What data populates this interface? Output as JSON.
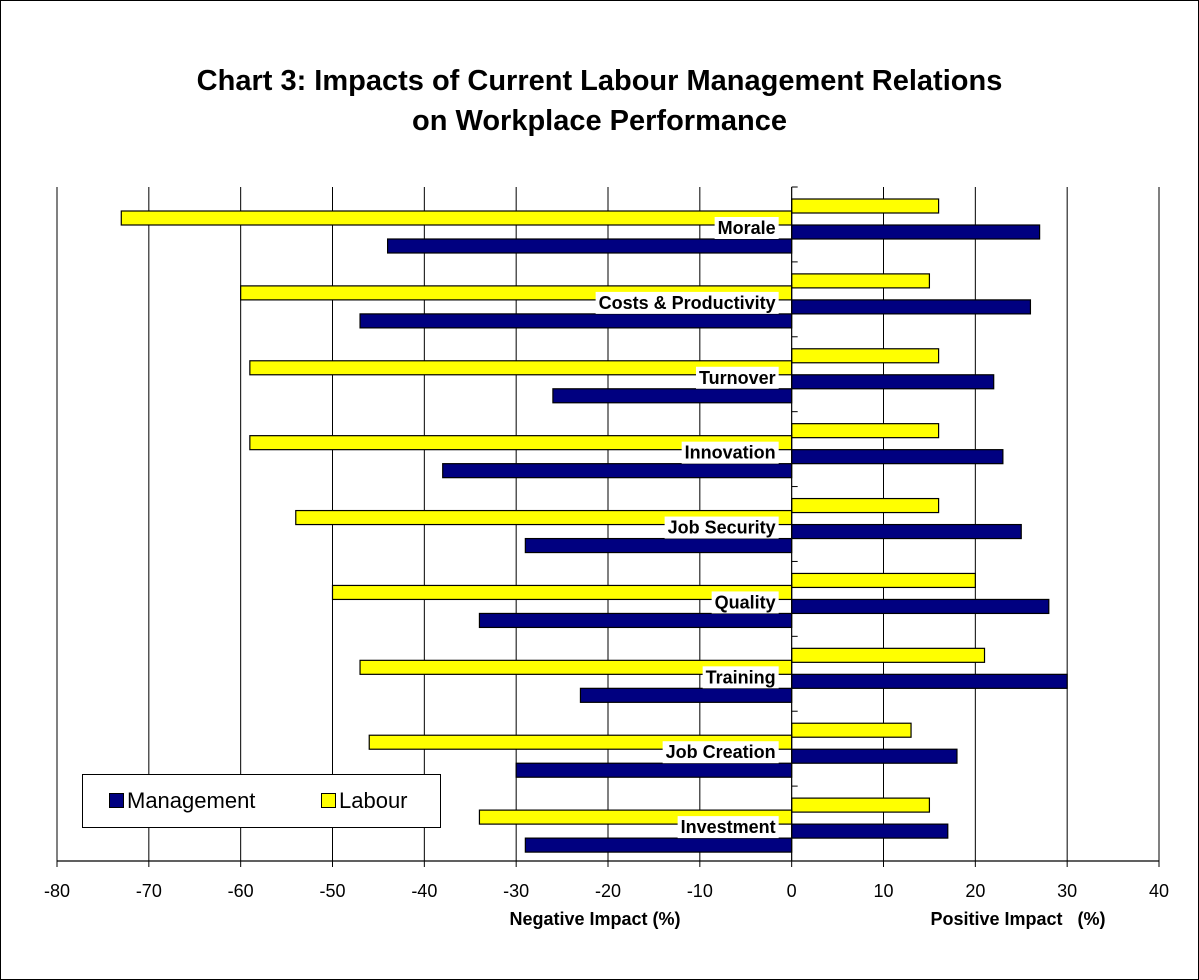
{
  "chart_data": {
    "type": "bar",
    "orientation": "horizontal",
    "title_lines": [
      "Chart 3: Impacts of Current Labour Management Relations",
      "on Workplace Performance"
    ],
    "categories": [
      "Morale",
      "Costs & Productivity",
      "Turnover",
      "Innovation",
      "Job Security",
      "Quality",
      "Training",
      "Job Creation",
      "Investment"
    ],
    "series": [
      {
        "name": "Management",
        "color": "#000080",
        "positive": [
          27,
          26,
          22,
          23,
          25,
          28,
          30,
          18,
          17
        ],
        "negative": [
          -44,
          -47,
          -26,
          -38,
          -29,
          -34,
          -23,
          -30,
          -29
        ]
      },
      {
        "name": "Labour",
        "color": "#ffff00",
        "positive": [
          16,
          15,
          16,
          16,
          16,
          20,
          21,
          13,
          15
        ],
        "negative": [
          -73,
          -60,
          -59,
          -59,
          -54,
          -50,
          -47,
          -46,
          -34
        ]
      }
    ],
    "xlim": [
      -80,
      40
    ],
    "xticks": [
      -80,
      -70,
      -60,
      -50,
      -40,
      -30,
      -20,
      -10,
      0,
      10,
      20,
      30,
      40
    ],
    "xlabel_negative": "Negative Impact (%)",
    "xlabel_positive": "Positive Impact   (%)",
    "grid": "vertical",
    "legend_position": "bottom-left"
  }
}
